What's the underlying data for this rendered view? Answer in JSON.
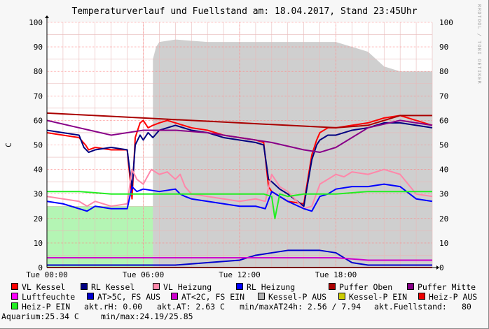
{
  "title": "Temperaturverlauf und Fuellstand am: 18.04.2017, Stand 23:45Uhr",
  "watermark": "RRDTOOL / TOBI OETIKER",
  "chart_data": {
    "type": "line",
    "ylabel": "C",
    "ylim": [
      0,
      100
    ],
    "xlim": [
      0,
      24
    ],
    "x_ticks": [
      0,
      6,
      12,
      18
    ],
    "x_tick_labels": [
      "Tue 00:00",
      "Tue 06:00",
      "Tue 12:00",
      "Tue 18:00"
    ],
    "y_ticks": [
      0,
      10,
      20,
      30,
      40,
      50,
      60,
      70,
      80,
      90,
      100
    ],
    "grid": true,
    "legend_position": "bottom",
    "series": [
      {
        "name": "VL Kessel",
        "color": "#ff0000",
        "kind": "line",
        "x": [
          0,
          1,
          2,
          2.4,
          2.6,
          3,
          4,
          5,
          5.3,
          5.5,
          5.8,
          6,
          6.3,
          6.6,
          7,
          7.5,
          8,
          9,
          10,
          11,
          12,
          13,
          13.5,
          13.8,
          14,
          14.5,
          15,
          16,
          16.5,
          16.8,
          17,
          17.5,
          18,
          19,
          20,
          21,
          22,
          23,
          24
        ],
        "y": [
          55,
          54,
          53,
          50,
          48,
          49,
          48,
          48,
          28,
          53,
          59,
          60,
          57,
          58,
          59,
          60,
          59,
          57,
          56,
          54,
          53,
          52,
          51,
          33,
          31,
          29,
          27,
          26,
          46,
          52,
          55,
          57,
          57,
          58,
          59,
          61,
          62,
          60,
          58
        ]
      },
      {
        "name": "RL Kessel",
        "color": "#000080",
        "kind": "line",
        "x": [
          0,
          1,
          2,
          2.3,
          2.6,
          3,
          4,
          5,
          5.3,
          5.5,
          5.8,
          6,
          6.3,
          6.6,
          7,
          7.5,
          8,
          9,
          10,
          11,
          12,
          13,
          13.5,
          13.8,
          14,
          14.5,
          15,
          16,
          16.5,
          16.8,
          17,
          17.5,
          18,
          19,
          20,
          21,
          22,
          23,
          24
        ],
        "y": [
          56,
          55,
          54,
          49,
          47,
          48,
          49,
          48,
          32,
          50,
          54,
          52,
          55,
          53,
          56,
          57,
          58,
          56,
          55,
          53,
          52,
          51,
          50,
          36,
          35,
          32,
          30,
          25,
          44,
          50,
          52,
          54,
          54,
          56,
          57,
          59,
          59,
          58,
          57
        ]
      },
      {
        "name": "VL Heizung",
        "color": "#ff88aa",
        "kind": "line",
        "x": [
          0,
          1,
          2,
          2.5,
          3,
          4,
          5,
          5.3,
          5.6,
          6,
          6.5,
          7,
          7.5,
          8,
          8.3,
          8.6,
          9,
          10,
          11,
          12,
          13,
          13.6,
          14,
          14.5,
          15,
          16,
          16.5,
          17,
          17.5,
          18,
          18.5,
          19,
          20,
          21,
          22,
          23,
          24
        ],
        "y": [
          29,
          28,
          27,
          25,
          27,
          25,
          26,
          40,
          36,
          34,
          40,
          38,
          39,
          36,
          38,
          33,
          30,
          29,
          28,
          27,
          28,
          27,
          38,
          33,
          31,
          24,
          25,
          34,
          36,
          38,
          37,
          39,
          38,
          40,
          38,
          30,
          29
        ]
      },
      {
        "name": "RL Heizung",
        "color": "#0000ff",
        "kind": "line",
        "x": [
          0,
          1,
          2,
          2.5,
          3,
          4,
          5,
          5.3,
          5.6,
          6,
          7,
          8,
          8.3,
          8.6,
          9,
          10,
          11,
          12,
          13,
          13.6,
          14,
          14.5,
          15,
          16,
          16.5,
          17,
          17.5,
          18,
          19,
          20,
          21,
          22,
          23,
          24
        ],
        "y": [
          27,
          26,
          24,
          23,
          25,
          24,
          24,
          33,
          31,
          32,
          31,
          32,
          30,
          29,
          28,
          27,
          26,
          25,
          25,
          24,
          31,
          29,
          27,
          24,
          23,
          29,
          30,
          32,
          33,
          33,
          34,
          33,
          28,
          27
        ]
      },
      {
        "name": "Puffer Oben",
        "color": "#aa0000",
        "kind": "line",
        "x": [
          0,
          3,
          6,
          9,
          12,
          15,
          18,
          20,
          22,
          24
        ],
        "y": [
          63,
          62,
          61,
          60,
          59,
          58,
          57,
          58,
          62,
          62
        ]
      },
      {
        "name": "Puffer Mitte",
        "color": "#880088",
        "kind": "line",
        "x": [
          0,
          2,
          4,
          6,
          8,
          10,
          12,
          14,
          16,
          17,
          18,
          20,
          22,
          24
        ],
        "y": [
          60,
          57,
          54,
          56,
          56,
          55,
          53,
          51,
          48,
          47,
          49,
          57,
          60,
          58
        ]
      },
      {
        "name": "Luftfeuchte",
        "color": "#ff00ff",
        "kind": "line",
        "x": [
          0,
          24
        ],
        "y": [
          0,
          0
        ]
      },
      {
        "name": "AT>5C, FS AUS",
        "color": "#0000cc",
        "kind": "line",
        "x": [
          0,
          2,
          4,
          6,
          8,
          10,
          12,
          13,
          14,
          15,
          16,
          17,
          18,
          19,
          20,
          22,
          24
        ],
        "y": [
          1,
          1,
          1,
          1,
          1,
          2,
          3,
          5,
          6,
          7,
          7,
          7,
          6,
          2,
          1,
          1,
          1
        ]
      },
      {
        "name": "AT<2C, FS EIN",
        "color": "#cc00cc",
        "kind": "line",
        "x": [
          0,
          2,
          4,
          6,
          8,
          10,
          12,
          14,
          16,
          18,
          20,
          22,
          24
        ],
        "y": [
          4,
          4,
          4,
          4,
          4,
          4,
          4,
          4,
          4,
          4,
          3,
          3,
          3
        ]
      },
      {
        "name": "Kessel-P AUS",
        "color": "#b0b0b0",
        "kind": "area",
        "x": [
          6.6,
          6.8,
          7,
          8,
          10,
          12,
          14,
          16,
          18,
          19,
          20,
          20.5,
          21,
          22,
          22.5,
          23,
          24
        ],
        "y": [
          85,
          90,
          92,
          93,
          92,
          92,
          92,
          92,
          92,
          90,
          88,
          85,
          82,
          80,
          80,
          80,
          80
        ]
      },
      {
        "name": "Kessel-P EIN",
        "color": "#cccc00",
        "kind": "line",
        "x": [
          0,
          24
        ],
        "y": [
          0,
          0
        ]
      },
      {
        "name": "Heiz-P AUS",
        "color": "#ee0000",
        "kind": "line",
        "x": [
          0,
          24
        ],
        "y": [
          0,
          0
        ]
      },
      {
        "name": "Heiz-P EIN",
        "color": "#22ee22",
        "kind": "line",
        "x": [
          0,
          2,
          4,
          5,
          6,
          8,
          10,
          12,
          13,
          13.5,
          14,
          14.2,
          14.5,
          15,
          16,
          17,
          18,
          20,
          22,
          24
        ],
        "y": [
          31,
          31,
          30,
          30,
          30,
          30,
          30,
          30,
          30,
          30,
          29,
          20,
          30,
          29,
          30,
          30,
          30,
          31,
          31,
          31
        ]
      }
    ],
    "fill_green_light": {
      "from": 0,
      "to": 6.6,
      "y": 25
    },
    "fill_green_dark": {
      "from": 6.6,
      "to": 23.5,
      "y": 25
    }
  },
  "info": {
    "line1_label1": "akt.rH: 0.00",
    "line1_label2": "akt.AT: 2.63 C",
    "line1_label3": "min/maxAT24h: 2.56 / 7.94",
    "line1_label4": "akt.Fuellstand:",
    "line1_value4": "80",
    "line2_label1": "Aquarium:25.34 C",
    "line2_label2": "min/max:24.19/25.85"
  },
  "colors": {
    "background": "#f7f7f7",
    "plot_bg": "#ffffff",
    "grid_minor": "#e8b8b8",
    "grid_major": "#ff8080"
  }
}
